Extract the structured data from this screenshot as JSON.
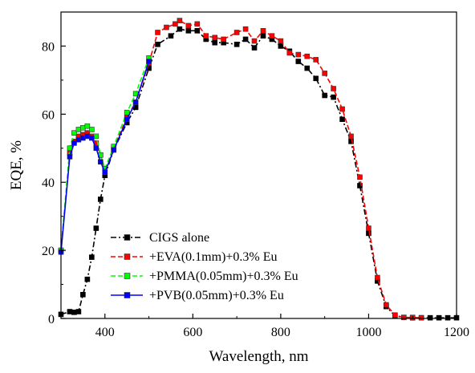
{
  "chart_data": {
    "type": "line",
    "title": "",
    "xlabel": "Wavelength, nm",
    "ylabel": "EQE, %",
    "xlim": [
      300,
      1200
    ],
    "ylim": [
      0,
      90
    ],
    "xticks": [
      400,
      600,
      800,
      1000,
      1200
    ],
    "yticks": [
      0,
      20,
      40,
      60,
      80
    ],
    "grid": false,
    "legend_position": "bottom-left",
    "series": [
      {
        "name": "CIGS alone",
        "color": "#000000",
        "line_style": "dash-dot",
        "marker": "square",
        "x": [
          300,
          320,
          330,
          340,
          350,
          360,
          370,
          380,
          390,
          400,
          420,
          450,
          470,
          500,
          520,
          550,
          570,
          590,
          610,
          630,
          650,
          670,
          700,
          720,
          740,
          760,
          780,
          800,
          820,
          840,
          860,
          880,
          900,
          920,
          940,
          960,
          980,
          1000,
          1020,
          1040,
          1060,
          1080,
          1100,
          1120,
          1140,
          1160,
          1180,
          1200
        ],
        "y": [
          1.2,
          2.0,
          1.8,
          2.0,
          7.0,
          11.5,
          18.0,
          26.5,
          35.0,
          42.0,
          49.5,
          57.5,
          62.0,
          73.5,
          80.5,
          83.0,
          85.0,
          84.5,
          84.5,
          82.0,
          81.0,
          81.0,
          80.5,
          82.0,
          79.5,
          83.0,
          82.0,
          80.0,
          78.5,
          75.5,
          73.5,
          70.5,
          65.5,
          65.0,
          58.5,
          52.0,
          39.0,
          25.0,
          11.0,
          3.5,
          0.8,
          0.3,
          0.2,
          0.2,
          0.2,
          0.2,
          0.2,
          0.2
        ]
      },
      {
        "name": "+EVA(0.1mm)+0.3% Eu",
        "color": "#ff0000",
        "line_style": "dash",
        "marker": "square",
        "x": [
          300,
          320,
          330,
          340,
          350,
          360,
          370,
          380,
          390,
          400,
          420,
          450,
          470,
          500,
          520,
          540,
          560,
          570,
          590,
          610,
          630,
          650,
          670,
          700,
          720,
          740,
          760,
          780,
          800,
          820,
          840,
          860,
          880,
          900,
          920,
          940,
          960,
          980,
          1000,
          1020,
          1040,
          1060,
          1080,
          1100,
          1120
        ],
        "y": [
          20.0,
          48.5,
          52.0,
          53.5,
          54.0,
          54.5,
          53.5,
          51.5,
          48.0,
          43.0,
          50.0,
          59.0,
          63.5,
          75.0,
          84.0,
          85.5,
          86.5,
          87.5,
          86.0,
          86.5,
          83.0,
          82.5,
          82.0,
          84.0,
          85.0,
          81.5,
          84.5,
          83.0,
          81.5,
          78.0,
          77.5,
          77.0,
          76.0,
          72.0,
          67.5,
          61.5,
          53.5,
          41.5,
          26.5,
          12.0,
          4.0,
          1.0,
          0.3,
          0.3,
          0.2
        ]
      },
      {
        "name": "+PMMA(0.05mm)+0.3% Eu",
        "color": "#00ff00",
        "line_style": "dash",
        "marker": "square",
        "x": [
          300,
          320,
          330,
          340,
          350,
          360,
          370,
          380,
          390,
          400,
          420,
          450,
          470,
          500
        ],
        "y": [
          20.0,
          50.0,
          54.5,
          55.5,
          56.0,
          56.5,
          55.5,
          53.5,
          48.0,
          44.0,
          50.5,
          60.5,
          66.0,
          76.5
        ]
      },
      {
        "name": "+PVB(0.05mm)+0.3% Eu",
        "color": "#0000ff",
        "line_style": "solid",
        "marker": "square",
        "x": [
          300,
          320,
          330,
          340,
          350,
          360,
          370,
          380,
          390,
          400,
          420,
          450,
          470,
          500
        ],
        "y": [
          19.5,
          47.5,
          51.5,
          52.5,
          53.0,
          53.5,
          53.0,
          50.0,
          46.0,
          43.0,
          49.5,
          58.5,
          63.5,
          75.5
        ]
      }
    ]
  }
}
